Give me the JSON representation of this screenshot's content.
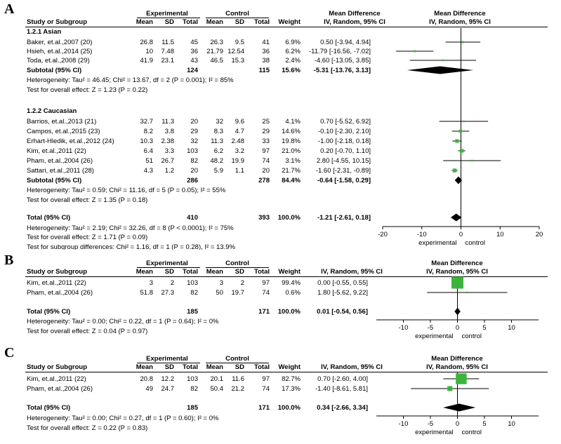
{
  "chart_data": [
    {
      "type": "forest",
      "panel_label": "A",
      "headers": {
        "study": "Study or Subgroup",
        "group1": "Experimental",
        "group2": "Control",
        "mean": "Mean",
        "sd": "SD",
        "total": "Total",
        "weight": "Weight",
        "md_title": "Mean Difference",
        "md_sub": "IV, Random, 95% CI"
      },
      "xlim": [
        -20,
        20
      ],
      "ticks": [
        -20,
        -10,
        0,
        10,
        20
      ],
      "axis_left_label": "experimental",
      "axis_right_label": "control",
      "subgroups": [
        {
          "name": "1.2.1 Asian",
          "studies": [
            {
              "name": "Baker, et.al.,2007 (20)",
              "exp_mean": "26.8",
              "exp_sd": "11.5",
              "exp_total": "45",
              "ctrl_mean": "26.3",
              "ctrl_sd": "9.5",
              "ctrl_total": "41",
              "weight": "6.9%",
              "ci_text": "0.50 [-3.94, 4.94]",
              "md": 0.5,
              "lo": -3.94,
              "hi": 4.94,
              "w": 6.9
            },
            {
              "name": "Hsieh, et.al.,2014 (25)",
              "exp_mean": "10",
              "exp_sd": "7.48",
              "exp_total": "36",
              "ctrl_mean": "21.79",
              "ctrl_sd": "12.54",
              "ctrl_total": "36",
              "weight": "6.2%",
              "ci_text": "-11.79 [-16.56, -7.02]",
              "md": -11.79,
              "lo": -16.56,
              "hi": -7.02,
              "w": 6.2
            },
            {
              "name": "Toda, et.al.,2008 (29)",
              "exp_mean": "41.9",
              "exp_sd": "23.1",
              "exp_total": "43",
              "ctrl_mean": "46.5",
              "ctrl_sd": "15.3",
              "ctrl_total": "38",
              "weight": "2.4%",
              "ci_text": "-4.60 [-13.05, 3.85]",
              "md": -4.6,
              "lo": -13.05,
              "hi": 3.85,
              "w": 2.4
            }
          ],
          "subtotal": {
            "label": "Subtotal (95% CI)",
            "exp_total": "124",
            "ctrl_total": "115",
            "weight": "15.6%",
            "ci_text": "-5.31 [-13.76, 3.13]",
            "md": -5.31,
            "lo": -13.76,
            "hi": 3.13
          },
          "heterogeneity": "Heterogeneity: Tau² = 46.45; Chi² = 13.67, df = 2 (P = 0.001); I² = 85%",
          "overall_effect": "Test for overall effect: Z = 1.23 (P = 0.22)"
        },
        {
          "name": "1.2.2 Caucasian",
          "studies": [
            {
              "name": "Barrios, et.al.,2013 (21)",
              "exp_mean": "32.7",
              "exp_sd": "11.3",
              "exp_total": "20",
              "ctrl_mean": "32",
              "ctrl_sd": "9.6",
              "ctrl_total": "25",
              "weight": "4.1%",
              "ci_text": "0.70 [-5.52, 6.92]",
              "md": 0.7,
              "lo": -5.52,
              "hi": 6.92,
              "w": 4.1
            },
            {
              "name": "Campos, et.al.,2015 (23)",
              "exp_mean": "8.2",
              "exp_sd": "3.8",
              "exp_total": "29",
              "ctrl_mean": "8.3",
              "ctrl_sd": "4.7",
              "ctrl_total": "29",
              "weight": "14.6%",
              "ci_text": "-0.10 [-2.30, 2.10]",
              "md": -0.1,
              "lo": -2.3,
              "hi": 2.1,
              "w": 14.6
            },
            {
              "name": "Erhart-Hledik, et.al.,2012 (24)",
              "exp_mean": "10.3",
              "exp_sd": "2.38",
              "exp_total": "32",
              "ctrl_mean": "11.3",
              "ctrl_sd": "2.48",
              "ctrl_total": "33",
              "weight": "19.8%",
              "ci_text": "-1.00 [-2.18, 0.18]",
              "md": -1.0,
              "lo": -2.18,
              "hi": 0.18,
              "w": 19.8
            },
            {
              "name": "Kim, et.al.,2011 (22)",
              "exp_mean": "6.4",
              "exp_sd": "3.3",
              "exp_total": "103",
              "ctrl_mean": "6.2",
              "ctrl_sd": "3.2",
              "ctrl_total": "97",
              "weight": "21.0%",
              "ci_text": "0.20 [-0.70, 1.10]",
              "md": 0.2,
              "lo": -0.7,
              "hi": 1.1,
              "w": 21.0
            },
            {
              "name": "Pham, et.al.,2004 (26)",
              "exp_mean": "51",
              "exp_sd": "26.7",
              "exp_total": "82",
              "ctrl_mean": "48.2",
              "ctrl_sd": "19.9",
              "ctrl_total": "74",
              "weight": "3.1%",
              "ci_text": "2.80 [-4.55, 10.15]",
              "md": 2.8,
              "lo": -4.55,
              "hi": 10.15,
              "w": 3.1
            },
            {
              "name": "Sattari, et.al.,2011 (28)",
              "exp_mean": "4.3",
              "exp_sd": "1.2",
              "exp_total": "20",
              "ctrl_mean": "5.9",
              "ctrl_sd": "1.1",
              "ctrl_total": "20",
              "weight": "21.7%",
              "ci_text": "-1.60 [-2.31, -0.89]",
              "md": -1.6,
              "lo": -2.31,
              "hi": -0.89,
              "w": 21.7
            }
          ],
          "subtotal": {
            "label": "Subtotal (95% CI)",
            "exp_total": "286",
            "ctrl_total": "278",
            "weight": "84.4%",
            "ci_text": "-0.64 [-1.58, 0.29]",
            "md": -0.64,
            "lo": -1.58,
            "hi": 0.29
          },
          "heterogeneity": "Heterogeneity: Tau² = 0.59; Chi² = 11.16, df = 5 (P = 0.05); I² = 55%",
          "overall_effect": "Test for overall effect: Z = 1.35 (P = 0.18)"
        }
      ],
      "total": {
        "label": "Total (95% CI)",
        "exp_total": "410",
        "ctrl_total": "393",
        "weight": "100.0%",
        "ci_text": "-1.21 [-2.61, 0.18]",
        "md": -1.21,
        "lo": -2.61,
        "hi": 0.18
      },
      "heterogeneity": "Heterogeneity: Tau² = 2.19; Chi² = 32.26, df = 8 (P < 0.0001); I² = 75%",
      "overall_effect": "Test for overall effect: Z = 1.71 (P = 0.09)",
      "subgroup_diff": "Test for subgroup differences: Chi² = 1.16, df = 1 (P = 0.28), I² = 13.9%"
    },
    {
      "type": "forest",
      "panel_label": "B",
      "headers": {
        "study": "Study or Subgroup",
        "group1": "Experimental",
        "group2": "Control",
        "mean": "Mean",
        "sd": "SD",
        "total": "Total",
        "weight": "Weight",
        "md_title": "Mean Difference",
        "md_sub": "IV, Random, 95% CI"
      },
      "xlim": [
        -15,
        15
      ],
      "ticks": [
        -10,
        -5,
        0,
        5,
        10
      ],
      "axis_left_label": "experimental",
      "axis_right_label": "control",
      "studies": [
        {
          "name": "Kim, et.al.,2011 (22)",
          "exp_mean": "3",
          "exp_sd": "2",
          "exp_total": "103",
          "ctrl_mean": "3",
          "ctrl_sd": "2",
          "ctrl_total": "97",
          "weight": "99.4%",
          "ci_text": "0.00 [-0.55, 0.55]",
          "md": 0.0,
          "lo": -0.55,
          "hi": 0.55,
          "w": 99.4
        },
        {
          "name": "Pham, et.al.,2004 (26)",
          "exp_mean": "51.8",
          "exp_sd": "27.3",
          "exp_total": "82",
          "ctrl_mean": "50",
          "ctrl_sd": "19.7",
          "ctrl_total": "74",
          "weight": "0.6%",
          "ci_text": "1.80 [-5.62, 9.22]",
          "md": 1.8,
          "lo": -5.62,
          "hi": 9.22,
          "w": 0.6
        }
      ],
      "total": {
        "label": "Total (95% CI)",
        "exp_total": "185",
        "ctrl_total": "171",
        "weight": "100.0%",
        "ci_text": "0.01 [-0.54, 0.56]",
        "md": 0.01,
        "lo": -0.54,
        "hi": 0.56
      },
      "heterogeneity": "Heterogeneity: Tau² = 0.00; Chi² = 0.22, df = 1 (P = 0.64); I² = 0%",
      "overall_effect": "Test for overall effect: Z = 0.04 (P = 0.97)"
    },
    {
      "type": "forest",
      "panel_label": "C",
      "headers": {
        "study": "Study or Subgroup",
        "group1": "Experimental",
        "group2": "Control",
        "mean": "Mean",
        "sd": "SD",
        "total": "Total",
        "weight": "Weight",
        "md_title": "Mean Difference",
        "md_sub": "IV, Random, 95% CI"
      },
      "xlim": [
        -15,
        15
      ],
      "ticks": [
        -10,
        -5,
        0,
        5,
        10
      ],
      "axis_left_label": "experimental",
      "axis_right_label": "control",
      "studies": [
        {
          "name": "Kim, et.al.,2011 (22)",
          "exp_mean": "20.8",
          "exp_sd": "12.2",
          "exp_total": "103",
          "ctrl_mean": "20.1",
          "ctrl_sd": "11.6",
          "ctrl_total": "97",
          "weight": "82.7%",
          "ci_text": "0.70 [-2.60, 4.00]",
          "md": 0.7,
          "lo": -2.6,
          "hi": 4.0,
          "w": 82.7
        },
        {
          "name": "Pham, et.al.,2004 (26)",
          "exp_mean": "49",
          "exp_sd": "24.7",
          "exp_total": "82",
          "ctrl_mean": "50.4",
          "ctrl_sd": "21.2",
          "ctrl_total": "74",
          "weight": "17.3%",
          "ci_text": "-1.40 [-8.61, 5.81]",
          "md": -1.4,
          "lo": -8.61,
          "hi": 5.81,
          "w": 17.3
        }
      ],
      "total": {
        "label": "Total (95% CI)",
        "exp_total": "185",
        "ctrl_total": "171",
        "weight": "100.0%",
        "ci_text": "0.34 [-2.66, 3.34]",
        "md": 0.34,
        "lo": -2.66,
        "hi": 3.34
      },
      "heterogeneity": "Heterogeneity: Tau² = 0.00; Chi² = 0.27, df = 1 (P = 0.60); I² = 0%",
      "overall_effect": "Test for overall effect: Z = 0.22 (P = 0.83)"
    }
  ],
  "colors": {
    "square": "#3cb43c",
    "diamond": "#000000",
    "line": "#000000"
  }
}
